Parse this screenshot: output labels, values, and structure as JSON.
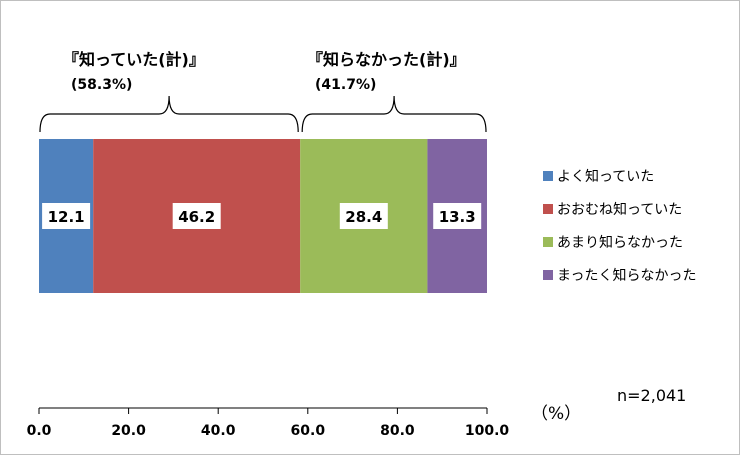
{
  "chart_data": {
    "type": "bar",
    "stacked": true,
    "orientation": "horizontal",
    "series": [
      {
        "name": "よく知っていた",
        "values": [
          12.1
        ],
        "color": "#4f81bd"
      },
      {
        "name": "おおむね知っていた",
        "values": [
          46.2
        ],
        "color": "#c0504d"
      },
      {
        "name": "あまり知らなかった",
        "values": [
          28.4
        ],
        "color": "#9bbb59"
      },
      {
        "name": "まったく知らなかった",
        "values": [
          13.3
        ],
        "color": "#8064a2"
      }
    ],
    "xlim": [
      0,
      100
    ],
    "xticks": [
      "0.0",
      "20.0",
      "40.0",
      "60.0",
      "80.0",
      "100.0"
    ],
    "xunit": "（%）",
    "n_label": "n=2,041",
    "legend_position": "right",
    "groups": [
      {
        "title": "『知っていた(計)』",
        "value": "(58.3%)",
        "range": [
          0,
          58.3
        ]
      },
      {
        "title": "『知らなかった(計)』",
        "value": "(41.7%)",
        "range": [
          58.3,
          100
        ]
      }
    ]
  }
}
